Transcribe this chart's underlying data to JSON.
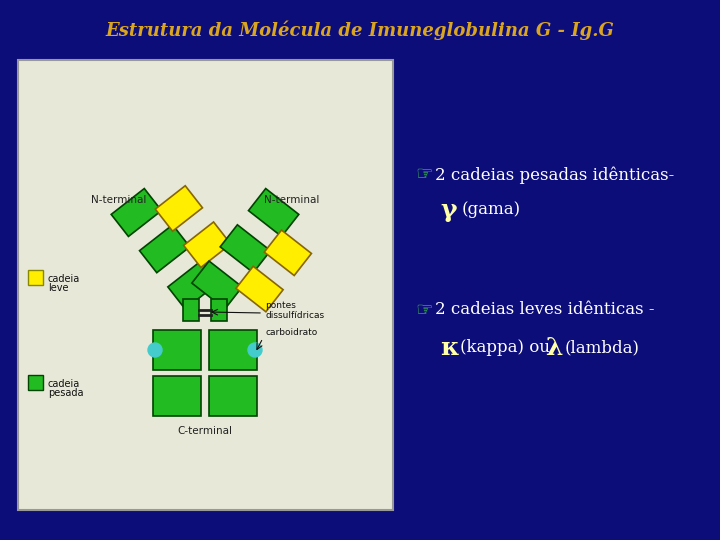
{
  "bg_color": "#0d0d7a",
  "title": "Estrutura da Molécula de Imuneglobulina G - Ig.G",
  "title_color": "#DAA520",
  "title_fontsize": 13,
  "diagram_bg": "#e8e8d8",
  "diagram_border": "#999999",
  "green_color": "#22bb22",
  "yellow_color": "#ffee00",
  "cyan_color": "#44cccc",
  "text_color": "#ffffff",
  "bullet_color": "#44cc44",
  "greek_bold_color": "#ffffaa",
  "label_color": "#000000",
  "line1_bullet": "☞",
  "line1_text": "2 cadeias pesadas idênticas-",
  "line2_greek": "γ",
  "line2_text": "(gama)",
  "line3_bullet": "☞",
  "line3_text": "2 cadeias leves idênticas -",
  "line4_greek1": "κ",
  "line4_mid": "(kappa) ou ",
  "line4_greek2": "λ",
  "line4_end": "(lambda)"
}
